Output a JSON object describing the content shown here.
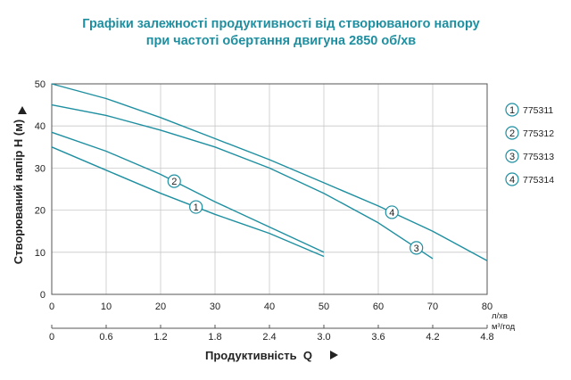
{
  "chart_data": {
    "type": "line",
    "title": "Графіки залежності продуктивності від створюваного напору",
    "subtitle": "при частоті обертання двигуна 2850 об/хв",
    "xlabel": "Продуктивність  Q",
    "ylabel": "Створюваний напір H (м)",
    "x_unit": "л/хв",
    "x2_unit": "м³/год",
    "xlim": [
      0,
      80
    ],
    "ylim": [
      0,
      50
    ],
    "xticks": [
      "0",
      "10",
      "20",
      "30",
      "40",
      "50",
      "60",
      "70",
      "80"
    ],
    "x2ticks": [
      "0",
      "0.6",
      "1.2",
      "1.8",
      "2.4",
      "3.0",
      "3.6",
      "4.2",
      "4.8"
    ],
    "yticks": [
      "0",
      "10",
      "20",
      "30",
      "40",
      "50"
    ],
    "grid": true,
    "legend_position": "right",
    "series": [
      {
        "name": "775311",
        "marker": "1",
        "marker_at": 26.5,
        "x": [
          0,
          10,
          20,
          30,
          40,
          50
        ],
        "y": [
          35,
          29.5,
          24,
          19,
          14.5,
          9
        ]
      },
      {
        "name": "775312",
        "marker": "2",
        "marker_at": 22.5,
        "x": [
          0,
          10,
          20,
          30,
          40,
          50
        ],
        "y": [
          38.5,
          34,
          28.5,
          22,
          16,
          10
        ]
      },
      {
        "name": "775313",
        "marker": "3",
        "marker_at": 67,
        "x": [
          0,
          10,
          20,
          30,
          40,
          50,
          60,
          70
        ],
        "y": [
          45,
          42.5,
          39,
          35,
          30,
          24,
          17,
          8.5
        ]
      },
      {
        "name": "775314",
        "marker": "4",
        "marker_at": 62.5,
        "x": [
          0,
          10,
          20,
          30,
          40,
          50,
          60,
          70,
          80
        ],
        "y": [
          50,
          46.5,
          42,
          37,
          32,
          26.5,
          21,
          15,
          8
        ]
      }
    ]
  }
}
